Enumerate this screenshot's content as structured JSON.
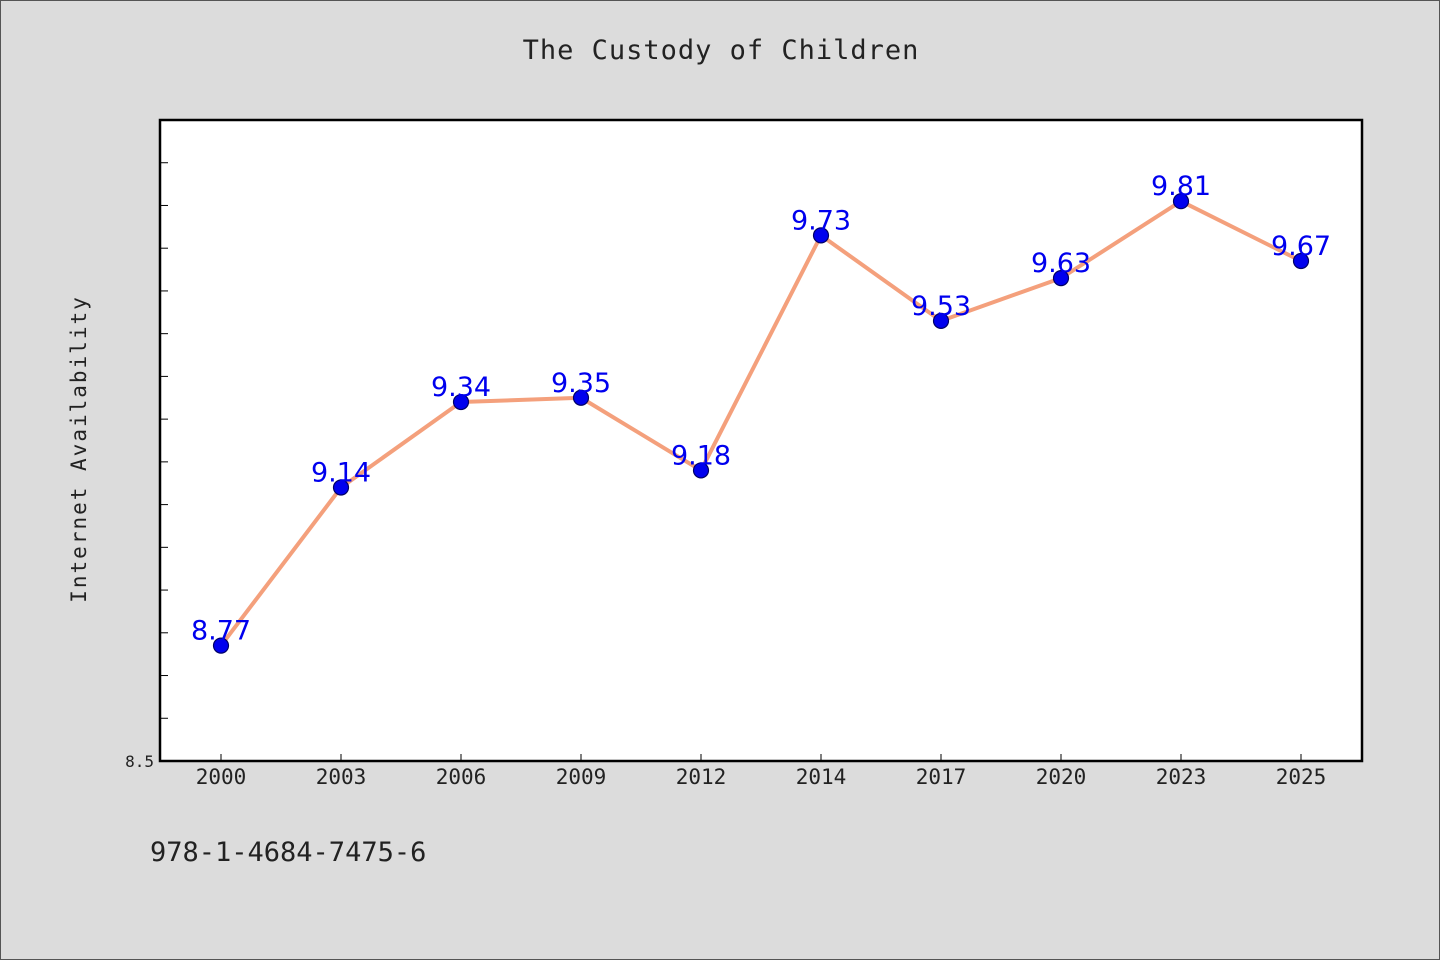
{
  "header": {
    "title": "The Custody of Children"
  },
  "footer": {
    "isbn": "978-1-4684-7475-6"
  },
  "chart_data": {
    "type": "line",
    "title": "The Custody of Children",
    "xlabel": "",
    "ylabel": "Internet Availability",
    "categories": [
      "2000",
      "2003",
      "2006",
      "2009",
      "2012",
      "2014",
      "2017",
      "2020",
      "2023",
      "2025"
    ],
    "series": [
      {
        "values": [
          8.77,
          9.14,
          9.34,
          9.35,
          9.18,
          9.73,
          9.53,
          9.63,
          9.81,
          9.67
        ]
      }
    ],
    "data_labels": [
      "8.77",
      "9.14",
      "9.34",
      "9.35",
      "9.18",
      "9.73",
      "9.53",
      "9.63",
      "9.81",
      "9.67"
    ],
    "ylim": [
      8.5,
      10.0
    ],
    "y_tick_label": "8.5",
    "ytick_step": 0.1,
    "grid": false,
    "legend": "none",
    "colors": {
      "line": "#f4a07c",
      "marker": "#0000ee",
      "marker_edge": "#000066",
      "label": "#0000ee",
      "plot_background": "#ffffff",
      "page_background": "#dcdcdc"
    }
  }
}
